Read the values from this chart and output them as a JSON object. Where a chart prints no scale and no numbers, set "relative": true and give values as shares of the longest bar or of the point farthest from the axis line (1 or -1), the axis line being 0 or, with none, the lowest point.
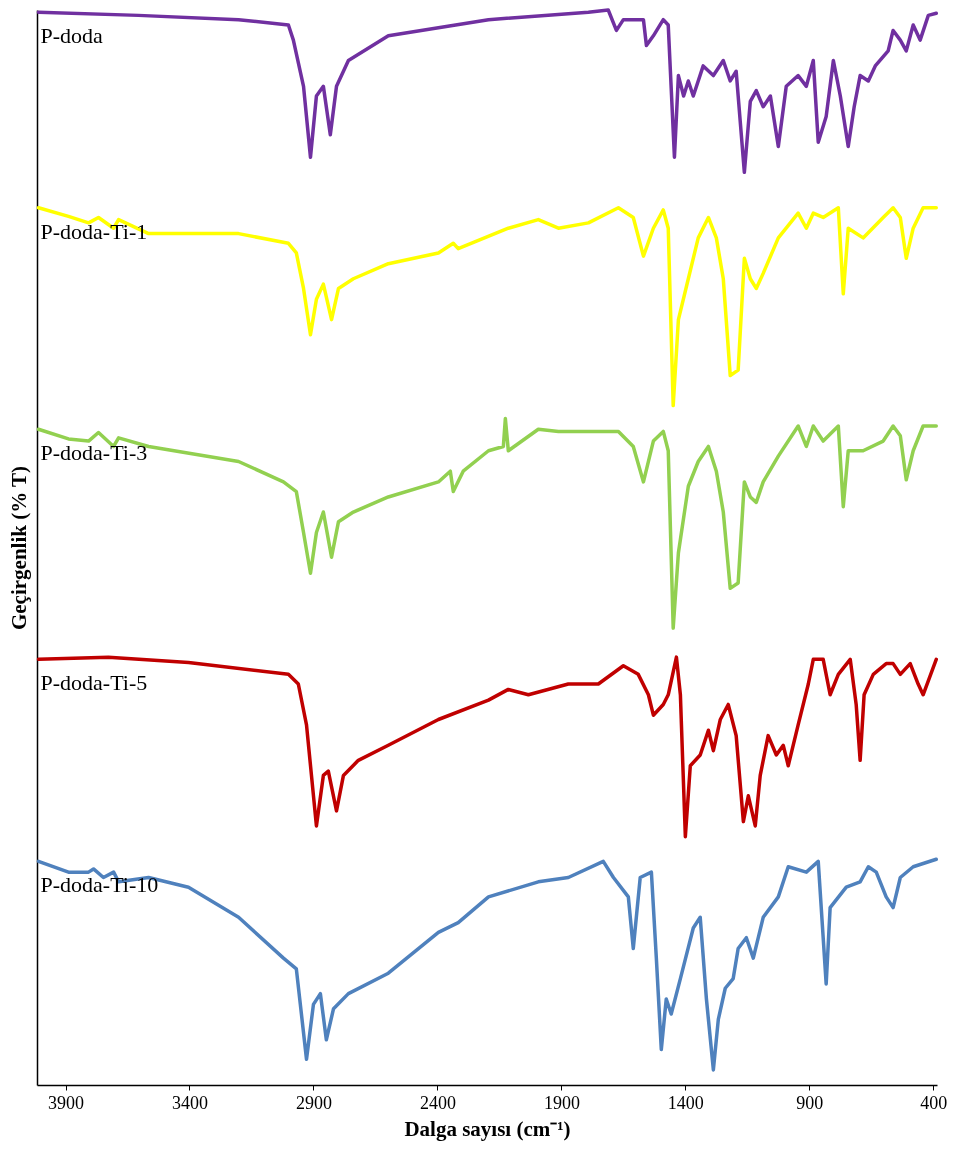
{
  "chart_data": {
    "type": "line",
    "relative": true,
    "xlabel": "Dalga sayısı (cm⁻¹)",
    "ylabel": "Geçirgenlik  (% T)",
    "xlim": [
      4015,
      385
    ],
    "xticks": [
      3900,
      3400,
      2900,
      2400,
      1900,
      1400,
      900,
      400
    ],
    "grid": false,
    "line_style": "solid",
    "series": [
      {
        "name": "P-doda",
        "color": "#7030a0",
        "x": [
          4009,
          3606,
          3202,
          3001,
          2981,
          2940,
          2912,
          2888,
          2860,
          2832,
          2807,
          2759,
          2598,
          2194,
          1791,
          1711,
          1678,
          1650,
          1569,
          1557,
          1529,
          1489,
          1469,
          1444,
          1428,
          1407,
          1388,
          1368,
          1328,
          1287,
          1247,
          1219,
          1195,
          1162,
          1138,
          1114,
          1086,
          1057,
          1025,
          993,
          945,
          912,
          884,
          864,
          832,
          803,
          775,
          743,
          719,
          695,
          662,
          634,
          582,
          562,
          533,
          509,
          481,
          453,
          420,
          388
        ],
        "values": [
          0.998,
          0.995,
          0.991,
          0.986,
          0.972,
          0.929,
          0.863,
          0.92,
          0.929,
          0.884,
          0.929,
          0.953,
          0.976,
          0.991,
          0.998,
          1.0,
          0.981,
          0.991,
          0.991,
          0.967,
          0.976,
          0.991,
          0.986,
          0.863,
          0.939,
          0.92,
          0.934,
          0.92,
          0.948,
          0.939,
          0.953,
          0.934,
          0.943,
          0.849,
          0.915,
          0.925,
          0.91,
          0.92,
          0.873,
          0.929,
          0.939,
          0.929,
          0.953,
          0.877,
          0.901,
          0.953,
          0.92,
          0.873,
          0.91,
          0.939,
          0.934,
          0.948,
          0.962,
          0.981,
          0.972,
          0.962,
          0.986,
          0.972,
          0.995,
          0.997
        ]
      },
      {
        "name": "P-doda-Ti-1",
        "color": "#ffff00",
        "x": [
          4009,
          3888,
          3807,
          3767,
          3706,
          3686,
          3565,
          3202,
          3001,
          2969,
          2940,
          2912,
          2888,
          2860,
          2827,
          2799,
          2739,
          2598,
          2396,
          2336,
          2316,
          2114,
          1993,
          1912,
          1791,
          1670,
          1610,
          1569,
          1529,
          1489,
          1469,
          1449,
          1428,
          1388,
          1348,
          1307,
          1275,
          1247,
          1219,
          1187,
          1162,
          1138,
          1114,
          1086,
          1025,
          945,
          912,
          884,
          844,
          783,
          763,
          743,
          683,
          602,
          562,
          533,
          509,
          481,
          441,
          388
        ],
        "values": [
          0.816,
          0.808,
          0.802,
          0.807,
          0.797,
          0.805,
          0.792,
          0.792,
          0.783,
          0.774,
          0.741,
          0.698,
          0.731,
          0.745,
          0.712,
          0.741,
          0.75,
          0.764,
          0.774,
          0.783,
          0.778,
          0.797,
          0.805,
          0.797,
          0.802,
          0.816,
          0.807,
          0.771,
          0.797,
          0.814,
          0.797,
          0.632,
          0.712,
          0.75,
          0.788,
          0.807,
          0.788,
          0.75,
          0.66,
          0.665,
          0.769,
          0.75,
          0.741,
          0.755,
          0.788,
          0.811,
          0.797,
          0.811,
          0.807,
          0.816,
          0.736,
          0.797,
          0.788,
          0.807,
          0.816,
          0.807,
          0.769,
          0.797,
          0.816,
          0.816
        ]
      },
      {
        "name": "P-doda-Ti-3",
        "color": "#92d050",
        "x": [
          4009,
          3888,
          3807,
          3767,
          3706,
          3686,
          3565,
          3202,
          3021,
          2969,
          2940,
          2912,
          2888,
          2860,
          2827,
          2799,
          2739,
          2598,
          2396,
          2348,
          2336,
          2296,
          2194,
          2134,
          2126,
          2114,
          1993,
          1912,
          1791,
          1670,
          1610,
          1569,
          1529,
          1489,
          1469,
          1449,
          1428,
          1388,
          1348,
          1307,
          1275,
          1247,
          1219,
          1187,
          1162,
          1138,
          1114,
          1086,
          1025,
          945,
          912,
          884,
          844,
          783,
          763,
          743,
          683,
          602,
          562,
          533,
          509,
          481,
          441,
          388
        ],
        "values": [
          0.61,
          0.601,
          0.599,
          0.607,
          0.594,
          0.602,
          0.594,
          0.58,
          0.561,
          0.552,
          0.514,
          0.476,
          0.514,
          0.533,
          0.491,
          0.524,
          0.533,
          0.547,
          0.561,
          0.571,
          0.552,
          0.571,
          0.59,
          0.594,
          0.62,
          0.59,
          0.61,
          0.608,
          0.608,
          0.608,
          0.594,
          0.561,
          0.599,
          0.608,
          0.59,
          0.425,
          0.495,
          0.557,
          0.58,
          0.594,
          0.571,
          0.533,
          0.462,
          0.467,
          0.561,
          0.547,
          0.542,
          0.561,
          0.585,
          0.613,
          0.594,
          0.613,
          0.599,
          0.613,
          0.538,
          0.59,
          0.59,
          0.599,
          0.613,
          0.604,
          0.563,
          0.59,
          0.613,
          0.613
        ]
      },
      {
        "name": "P-doda-Ti-5",
        "color": "#c00000",
        "x": [
          4009,
          3727,
          3404,
          3001,
          2961,
          2928,
          2888,
          2860,
          2840,
          2807,
          2779,
          2719,
          2598,
          2396,
          2194,
          2114,
          2033,
          1872,
          1751,
          1650,
          1590,
          1549,
          1529,
          1489,
          1469,
          1436,
          1420,
          1400,
          1380,
          1340,
          1307,
          1287,
          1259,
          1227,
          1195,
          1166,
          1146,
          1118,
          1098,
          1066,
          1033,
          1005,
          985,
          945,
          904,
          884,
          844,
          816,
          783,
          735,
          711,
          695,
          679,
          642,
          590,
          562,
          533,
          493,
          461,
          441,
          388
        ],
        "values": [
          0.396,
          0.398,
          0.393,
          0.382,
          0.373,
          0.335,
          0.241,
          0.288,
          0.292,
          0.255,
          0.288,
          0.302,
          0.316,
          0.34,
          0.358,
          0.368,
          0.363,
          0.373,
          0.373,
          0.39,
          0.382,
          0.363,
          0.344,
          0.354,
          0.363,
          0.398,
          0.363,
          0.231,
          0.297,
          0.307,
          0.33,
          0.311,
          0.34,
          0.354,
          0.325,
          0.245,
          0.269,
          0.241,
          0.288,
          0.325,
          0.307,
          0.316,
          0.297,
          0.335,
          0.373,
          0.396,
          0.396,
          0.363,
          0.382,
          0.396,
          0.354,
          0.302,
          0.363,
          0.382,
          0.392,
          0.392,
          0.382,
          0.392,
          0.373,
          0.363,
          0.396
        ]
      },
      {
        "name": "P-doda-Ti-10",
        "color": "#4f81bd",
        "x": [
          4009,
          3888,
          3807,
          3787,
          3747,
          3706,
          3686,
          3565,
          3404,
          3202,
          3021,
          2969,
          2928,
          2900,
          2872,
          2848,
          2819,
          2759,
          2598,
          2396,
          2316,
          2194,
          1993,
          1872,
          1731,
          1690,
          1630,
          1610,
          1582,
          1537,
          1517,
          1497,
          1477,
          1457,
          1420,
          1368,
          1340,
          1315,
          1287,
          1267,
          1239,
          1207,
          1187,
          1154,
          1126,
          1086,
          1025,
          985,
          912,
          864,
          832,
          816,
          751,
          695,
          662,
          630,
          590,
          562,
          533,
          481,
          388
        ],
        "values": [
          0.208,
          0.198,
          0.198,
          0.201,
          0.193,
          0.198,
          0.189,
          0.193,
          0.184,
          0.156,
          0.118,
          0.108,
          0.024,
          0.075,
          0.085,
          0.042,
          0.071,
          0.085,
          0.104,
          0.142,
          0.151,
          0.175,
          0.189,
          0.193,
          0.208,
          0.193,
          0.175,
          0.127,
          0.193,
          0.198,
          0.118,
          0.033,
          0.08,
          0.066,
          0.099,
          0.146,
          0.156,
          0.08,
          0.014,
          0.061,
          0.09,
          0.099,
          0.127,
          0.137,
          0.118,
          0.156,
          0.175,
          0.203,
          0.198,
          0.208,
          0.094,
          0.165,
          0.184,
          0.189,
          0.203,
          0.198,
          0.175,
          0.165,
          0.193,
          0.203,
          0.21
        ]
      }
    ]
  }
}
